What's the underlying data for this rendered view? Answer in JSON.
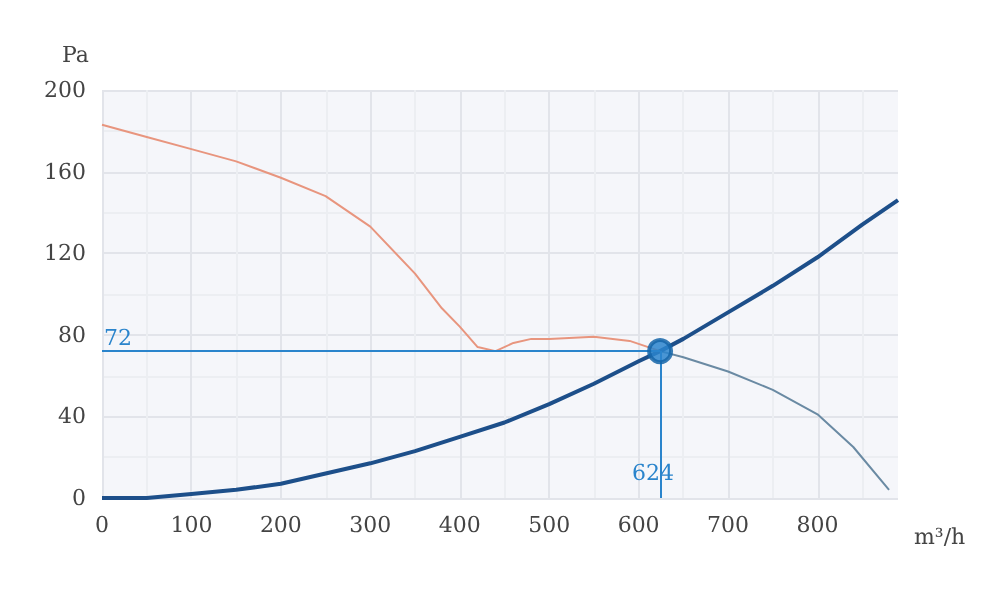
{
  "chart_data": {
    "type": "line",
    "xlabel": "m³/h",
    "ylabel": "Pa",
    "xlim": [
      0,
      890
    ],
    "xticks": [
      0,
      100,
      200,
      300,
      400,
      500,
      600,
      700,
      800
    ],
    "ylim": [
      0,
      200
    ],
    "yticks": [
      0,
      40,
      80,
      120,
      160,
      200
    ],
    "grid": true,
    "marker": "none",
    "line_style": "solid",
    "series": [
      {
        "color": "#e8957e",
        "x": [
          0,
          50,
          100,
          150,
          200,
          250,
          300,
          350,
          380,
          400,
          420,
          440,
          460,
          480,
          500,
          550,
          590,
          624
        ],
        "values": [
          183,
          177,
          171,
          165,
          157,
          148,
          133,
          110,
          93,
          84,
          74,
          72,
          76,
          78,
          78,
          79,
          77,
          72
        ]
      },
      {
        "color": "#6a8aa3",
        "x": [
          624,
          650,
          700,
          750,
          800,
          840,
          880
        ],
        "values": [
          72,
          69,
          62,
          53,
          41,
          25,
          4
        ]
      },
      {
        "color": "#1d4f8a",
        "x": [
          0,
          50,
          100,
          150,
          200,
          250,
          300,
          350,
          400,
          450,
          500,
          550,
          600,
          624,
          650,
          700,
          750,
          800,
          850,
          890
        ],
        "values": [
          0,
          0,
          2,
          4,
          7,
          12,
          17,
          23,
          30,
          37,
          46,
          56,
          67,
          72,
          78,
          91,
          104,
          118,
          134,
          146
        ]
      },
      {
        "type": "scatter",
        "color": "#2a84cc",
        "marker": "circle",
        "x": [
          624
        ],
        "values": [
          72
        ]
      }
    ],
    "ref_lines": [
      {
        "axis": "y",
        "value": 72,
        "label": "72",
        "color": "#2a84cc"
      },
      {
        "axis": "x",
        "value": 624,
        "label": "624",
        "color": "#2a84cc"
      }
    ]
  }
}
